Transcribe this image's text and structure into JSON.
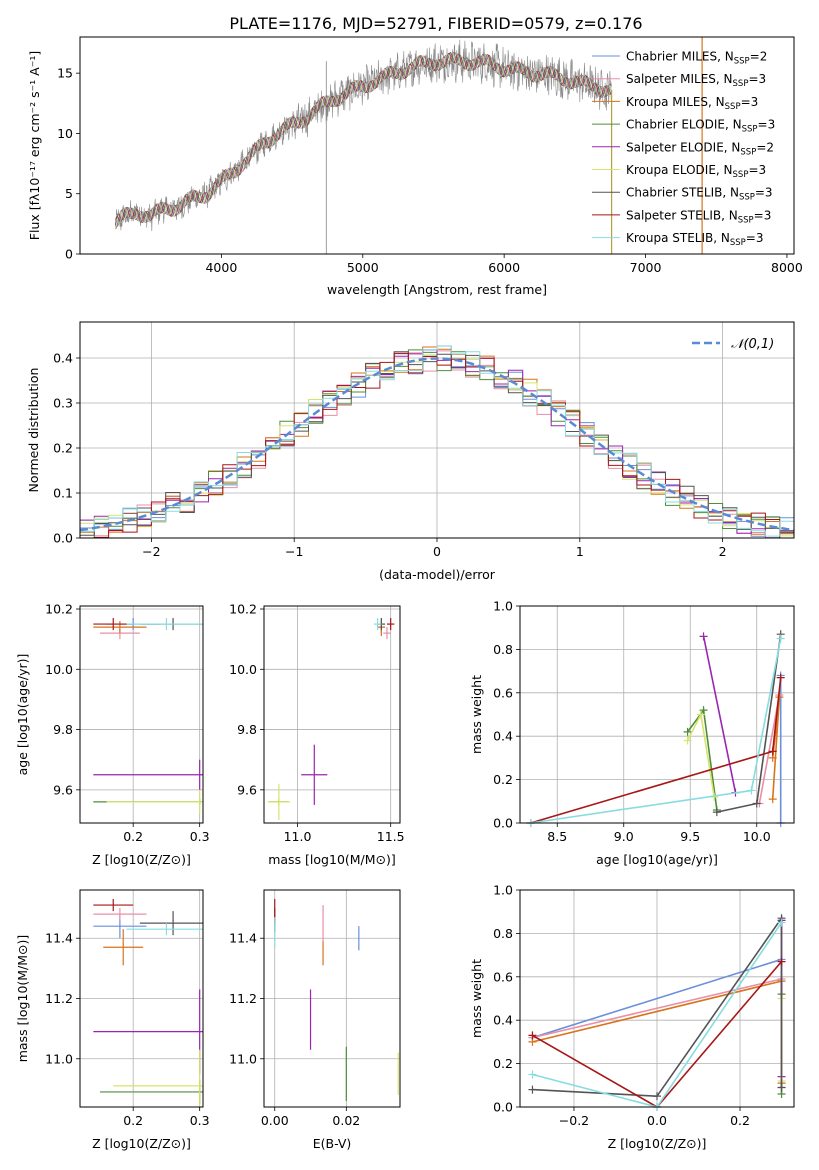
{
  "title": "PLATE=1176, MJD=52791, FIBERID=0579, z=0.176",
  "series_legend": [
    {
      "name": "Chabrier MILES, N",
      "sub": "SSP",
      "tail": "=2",
      "color": "#6a8fdc"
    },
    {
      "name": "Salpeter MILES, N",
      "sub": "SSP",
      "tail": "=3",
      "color": "#e98fa6"
    },
    {
      "name": "Kroupa MILES, N",
      "sub": "SSP",
      "tail": "=3",
      "color": "#d9731c"
    },
    {
      "name": "Chabrier ELODIE, N",
      "sub": "SSP",
      "tail": "=3",
      "color": "#4e8e3a"
    },
    {
      "name": "Salpeter ELODIE, N",
      "sub": "SSP",
      "tail": "=2",
      "color": "#9b25b1"
    },
    {
      "name": "Kroupa ELODIE, N",
      "sub": "SSP",
      "tail": "=3",
      "color": "#d8e36b"
    },
    {
      "name": "Chabrier STELIB, N",
      "sub": "SSP",
      "tail": "=3",
      "color": "#545454"
    },
    {
      "name": "Salpeter STELIB, N",
      "sub": "SSP",
      "tail": "=3",
      "color": "#a81616"
    },
    {
      "name": "Kroupa STELIB, N",
      "sub": "SSP",
      "tail": "=3",
      "color": "#86dde0"
    }
  ],
  "chart_data": [
    {
      "id": "spectrum",
      "type": "line",
      "xlabel": "wavelength [Angstrom, rest frame]",
      "ylabel": "Flux [f_λ10^-17 erg cm^-2 s^-1 A^-1]",
      "xlim": [
        3000,
        8050
      ],
      "ylim": [
        0,
        18
      ],
      "xticks": [
        4000,
        5000,
        6000,
        7000,
        8000
      ],
      "yticks": [
        0,
        5,
        10,
        15
      ],
      "grid": false,
      "legend_position": "top-right",
      "data_anchor": {
        "x": [
          3250,
          3300,
          3400,
          3500,
          3600,
          3700,
          3800,
          3900,
          4000,
          4100,
          4200,
          4300,
          4400,
          4500,
          4600,
          4700,
          4800,
          4900,
          5000,
          5100,
          5200,
          5300,
          5400,
          5500,
          5600,
          5700,
          5800,
          5900,
          6000,
          6100,
          6200,
          6300,
          6400,
          6500,
          6600,
          6700,
          6760
        ],
        "y": [
          2.5,
          3.0,
          3.5,
          3.1,
          3.8,
          3.9,
          4.6,
          5.0,
          6.0,
          7.0,
          8.0,
          9.2,
          10.0,
          10.7,
          11.3,
          12.2,
          12.9,
          13.4,
          13.9,
          14.4,
          14.9,
          15.3,
          15.7,
          15.9,
          16.0,
          16.0,
          15.9,
          15.8,
          15.4,
          15.2,
          15.0,
          14.9,
          14.6,
          14.3,
          14.0,
          13.7,
          13.6
        ]
      }
    },
    {
      "id": "residuals",
      "type": "line",
      "xlabel": "(data-model)/error",
      "ylabel": "Normed distribution",
      "xlim": [
        -2.5,
        2.5
      ],
      "ylim": [
        0,
        0.48
      ],
      "xticks": [
        -2,
        -1,
        0,
        1,
        2
      ],
      "yticks": [
        0.0,
        0.1,
        0.2,
        0.3,
        0.4
      ],
      "grid": true,
      "legend": "𝒩(0,1)",
      "legend_position": "top-right",
      "reference_curve": "normal(0,1)",
      "histogram_bin_width": 0.1
    },
    {
      "id": "age_vs_Z",
      "type": "scatter",
      "xlabel": "Z [log10(Z/Z⊙)]",
      "ylabel": "age [log10(age/yr)]",
      "xlim": [
        0.12,
        0.305
      ],
      "ylim": [
        9.49,
        10.21
      ],
      "xticks": [
        0.2,
        0.3
      ],
      "yticks": [
        9.6,
        9.8,
        10.0,
        10.2
      ],
      "grid": true,
      "points": [
        {
          "s": 0,
          "x": 0.2,
          "y": 10.15,
          "xe": 0.04,
          "ye": 0.02
        },
        {
          "s": 1,
          "x": 0.18,
          "y": 10.12,
          "xe": 0.03,
          "ye": 0.02
        },
        {
          "s": 2,
          "x": 0.18,
          "y": 10.14,
          "xe": 0.04,
          "ye": 0.02
        },
        {
          "s": 3,
          "x": 0.3,
          "y": 9.56,
          "xe": 0.16,
          "ye": 0.01
        },
        {
          "s": 4,
          "x": 0.3,
          "y": 9.65,
          "xe": 0.16,
          "ye": 0.05
        },
        {
          "s": 5,
          "x": 0.3,
          "y": 9.56,
          "xe": 0.14,
          "ye": 0.04
        },
        {
          "s": 6,
          "x": 0.26,
          "y": 10.15,
          "xe": 0.05,
          "ye": 0.02
        },
        {
          "s": 7,
          "x": 0.17,
          "y": 10.15,
          "xe": 0.03,
          "ye": 0.02
        },
        {
          "s": 8,
          "x": 0.25,
          "y": 10.15,
          "xe": 0.06,
          "ye": 0.02
        }
      ]
    },
    {
      "id": "age_vs_mass",
      "type": "scatter",
      "xlabel": "mass [log10(M/M⊙)]",
      "ylabel": "",
      "xlim": [
        10.82,
        11.55
      ],
      "ylim": [
        9.49,
        10.21
      ],
      "xticks": [
        11.0,
        11.5
      ],
      "yticks": [
        9.6,
        9.8,
        10.0,
        10.2
      ],
      "grid": true,
      "points": [
        {
          "s": 0,
          "x": 11.45,
          "y": 10.14,
          "xe": 0.02,
          "ye": 0.02
        },
        {
          "s": 1,
          "x": 11.48,
          "y": 10.12,
          "xe": 0.02,
          "ye": 0.02
        },
        {
          "s": 2,
          "x": 11.45,
          "y": 10.14,
          "xe": 0.02,
          "ye": 0.03
        },
        {
          "s": 3,
          "x": 10.9,
          "y": 9.56,
          "xe": 0.05,
          "ye": 0.01
        },
        {
          "s": 4,
          "x": 11.09,
          "y": 9.65,
          "xe": 0.07,
          "ye": 0.1
        },
        {
          "s": 5,
          "x": 10.9,
          "y": 9.56,
          "xe": 0.06,
          "ye": 0.06
        },
        {
          "s": 6,
          "x": 11.45,
          "y": 10.15,
          "xe": 0.02,
          "ye": 0.02
        },
        {
          "s": 7,
          "x": 11.5,
          "y": 10.15,
          "xe": 0.02,
          "ye": 0.02
        },
        {
          "s": 8,
          "x": 11.43,
          "y": 10.15,
          "xe": 0.02,
          "ye": 0.02
        }
      ]
    },
    {
      "id": "weight_vs_age",
      "type": "line",
      "xlabel": "age [log10(age/yr)]",
      "ylabel": "mass weight",
      "xlim": [
        8.22,
        10.28
      ],
      "ylim": [
        0,
        1
      ],
      "xticks": [
        8.5,
        9.0,
        9.5,
        10.0
      ],
      "yticks": [
        0.0,
        0.2,
        0.4,
        0.6,
        0.8,
        1.0
      ],
      "grid": true,
      "series": [
        {
          "s": 0,
          "x": [
            10.18,
            10.18
          ],
          "y": [
            0.68,
            0.0
          ]
        },
        {
          "s": 1,
          "x": [
            10.02,
            10.17
          ],
          "y": [
            0.09,
            0.59
          ]
        },
        {
          "s": 2,
          "x": [
            10.12,
            10.17,
            10.12
          ],
          "y": [
            0.11,
            0.58,
            0.3
          ]
        },
        {
          "s": 3,
          "x": [
            9.48,
            9.6,
            9.7
          ],
          "y": [
            0.42,
            0.52,
            0.06
          ]
        },
        {
          "s": 4,
          "x": [
            9.6,
            9.84
          ],
          "y": [
            0.86,
            0.14
          ]
        },
        {
          "s": 5,
          "x": [
            9.48,
            9.58,
            9.68
          ],
          "y": [
            0.38,
            0.5,
            0.12
          ]
        },
        {
          "s": 6,
          "x": [
            9.7,
            10.0,
            10.18
          ],
          "y": [
            0.05,
            0.09,
            0.87
          ]
        },
        {
          "s": 7,
          "x": [
            8.3,
            10.12,
            10.18
          ],
          "y": [
            0.0,
            0.33,
            0.67
          ]
        },
        {
          "s": 8,
          "x": [
            8.3,
            9.96,
            10.18
          ],
          "y": [
            0.0,
            0.15,
            0.85
          ]
        }
      ]
    },
    {
      "id": "mass_vs_Z",
      "type": "scatter",
      "xlabel": "Z [log10(Z/Z⊙)]",
      "ylabel": "mass [log10(M/M⊙)]",
      "xlim": [
        0.12,
        0.305
      ],
      "ylim": [
        10.84,
        11.56
      ],
      "xticks": [
        0.2,
        0.3
      ],
      "yticks": [
        11.0,
        11.2,
        11.4
      ],
      "grid": true,
      "points": [
        {
          "s": 0,
          "x": 0.18,
          "y": 11.44,
          "xe": 0.04,
          "ye": 0.04
        },
        {
          "s": 1,
          "x": 0.18,
          "y": 11.48,
          "xe": 0.04,
          "ye": 0.02
        },
        {
          "s": 2,
          "x": 0.185,
          "y": 11.37,
          "xe": 0.03,
          "ye": 0.06
        },
        {
          "s": 3,
          "x": 0.3,
          "y": 10.89,
          "xe": 0.15,
          "ye": 0.04
        },
        {
          "s": 4,
          "x": 0.3,
          "y": 11.09,
          "xe": 0.16,
          "ye": 0.14
        },
        {
          "s": 5,
          "x": 0.3,
          "y": 10.91,
          "xe": 0.13,
          "ye": 0.12
        },
        {
          "s": 6,
          "x": 0.26,
          "y": 11.45,
          "xe": 0.05,
          "ye": 0.04
        },
        {
          "s": 7,
          "x": 0.17,
          "y": 11.51,
          "xe": 0.03,
          "ye": 0.02
        },
        {
          "s": 8,
          "x": 0.25,
          "y": 11.43,
          "xe": 0.06,
          "ye": 0.02
        }
      ]
    },
    {
      "id": "mass_vs_EBV",
      "type": "scatter",
      "xlabel": "E(B-V)",
      "ylabel": "",
      "xlim": [
        -0.003,
        0.035
      ],
      "ylim": [
        10.84,
        11.56
      ],
      "xticks": [
        0.0,
        0.02
      ],
      "yticks": [
        11.0,
        11.2,
        11.4
      ],
      "grid": true,
      "points": [
        {
          "s": 0,
          "x": 0.0235,
          "y": 11.4,
          "xe": 0.0,
          "ye": 0.04
        },
        {
          "s": 1,
          "x": 0.0135,
          "y": 11.45,
          "xe": 0.0,
          "ye": 0.06
        },
        {
          "s": 2,
          "x": 0.0135,
          "y": 11.35,
          "xe": 0.0,
          "ye": 0.04
        },
        {
          "s": 3,
          "x": 0.02,
          "y": 10.95,
          "xe": 0.0,
          "ye": 0.09
        },
        {
          "s": 4,
          "x": 0.01,
          "y": 11.13,
          "xe": 0.0,
          "ye": 0.1
        },
        {
          "s": 5,
          "x": 0.0345,
          "y": 10.95,
          "xe": 0.0,
          "ye": 0.07
        },
        {
          "s": 6,
          "x": 0.0,
          "y": 11.46,
          "xe": 0.0,
          "ye": 0.04
        },
        {
          "s": 7,
          "x": 0.0,
          "y": 11.49,
          "xe": 0.0,
          "ye": 0.04
        },
        {
          "s": 8,
          "x": 0.0,
          "y": 11.42,
          "xe": 0.0,
          "ye": 0.05
        }
      ]
    },
    {
      "id": "weight_vs_Z",
      "type": "line",
      "xlabel": "Z [log10(Z/Z⊙)]",
      "ylabel": "mass weight",
      "xlim": [
        -0.33,
        0.33
      ],
      "ylim": [
        0,
        1
      ],
      "xticks": [
        -0.2,
        0.0,
        0.2
      ],
      "yticks": [
        0.0,
        0.2,
        0.4,
        0.6,
        0.8,
        1.0
      ],
      "grid": true,
      "series": [
        {
          "s": 0,
          "x": [
            -0.3,
            0.3
          ],
          "y": [
            0.32,
            0.68
          ]
        },
        {
          "s": 1,
          "x": [
            -0.3,
            0.3,
            0.3
          ],
          "y": [
            0.32,
            0.59,
            0.09
          ]
        },
        {
          "s": 2,
          "x": [
            -0.3,
            0.3,
            0.3
          ],
          "y": [
            0.3,
            0.58,
            0.11
          ]
        },
        {
          "s": 3,
          "x": [
            0.3,
            0.3
          ],
          "y": [
            0.52,
            0.06
          ]
        },
        {
          "s": 4,
          "x": [
            0.3,
            0.3
          ],
          "y": [
            0.86,
            0.14
          ]
        },
        {
          "s": 5,
          "x": [
            0.3,
            0.3
          ],
          "y": [
            0.5,
            0.12
          ]
        },
        {
          "s": 6,
          "x": [
            -0.3,
            0.0,
            0.3,
            0.3
          ],
          "y": [
            0.08,
            0.05,
            0.87,
            0.09
          ]
        },
        {
          "s": 7,
          "x": [
            -0.3,
            0.0,
            0.3
          ],
          "y": [
            0.33,
            0.0,
            0.67
          ]
        },
        {
          "s": 8,
          "x": [
            -0.3,
            0.0,
            0.3
          ],
          "y": [
            0.15,
            0.0,
            0.85
          ]
        }
      ]
    }
  ]
}
